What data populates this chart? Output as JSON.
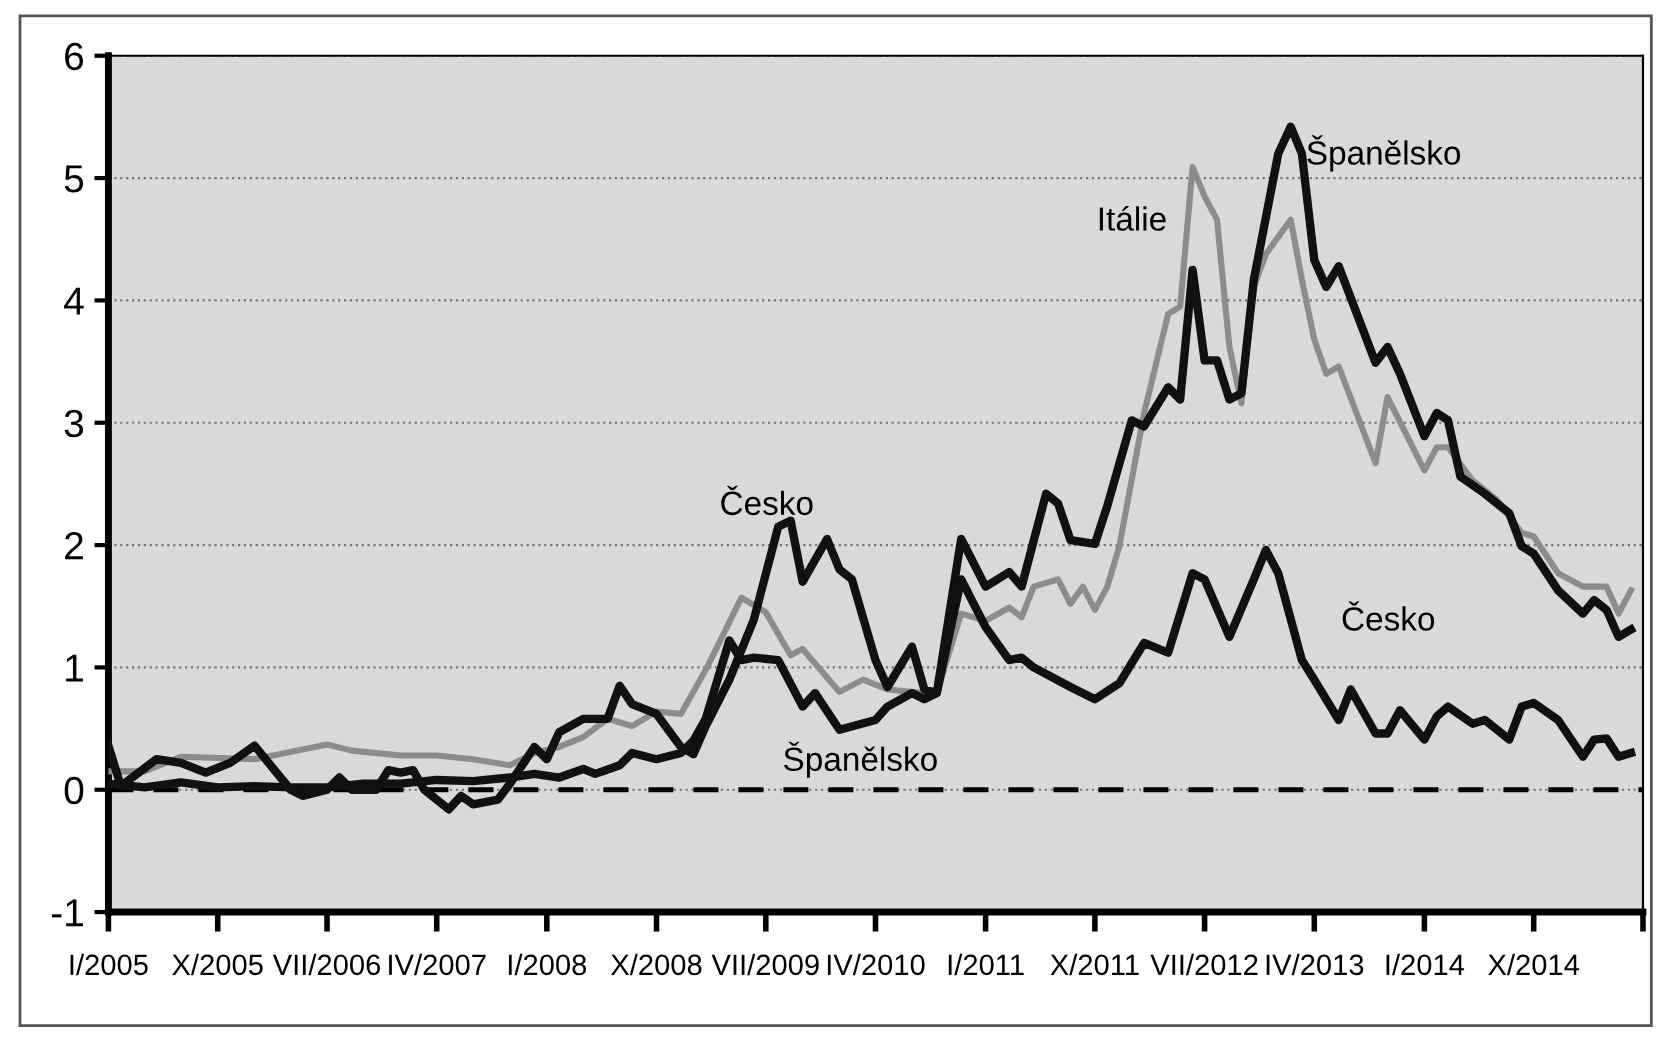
{
  "chart_data": {
    "type": "line",
    "xlim": [
      "2005-01",
      "2015-07"
    ],
    "ylim": [
      -1,
      6
    ],
    "yticks": [
      -1,
      0,
      1,
      2,
      3,
      4,
      5,
      6
    ],
    "xticks": [
      {
        "value": "2005-01",
        "label": "I/2005"
      },
      {
        "value": "2005-10",
        "label": "X/2005"
      },
      {
        "value": "2006-07",
        "label": "VII/2006"
      },
      {
        "value": "2007-04",
        "label": "IV/2007"
      },
      {
        "value": "2008-01",
        "label": "I/2008"
      },
      {
        "value": "2008-10",
        "label": "X/2008"
      },
      {
        "value": "2009-07",
        "label": "VII/2009"
      },
      {
        "value": "2010-04",
        "label": "IV/2010"
      },
      {
        "value": "2011-01",
        "label": "I/2011"
      },
      {
        "value": "2011-10",
        "label": "X/2011"
      },
      {
        "value": "2012-07",
        "label": "VII/2012"
      },
      {
        "value": "2013-04",
        "label": "IV/2013"
      },
      {
        "value": "2014-01",
        "label": "I/2014"
      },
      {
        "value": "2014-10",
        "label": "X/2014"
      },
      {
        "value": "2015-07",
        "label": null
      }
    ],
    "grid": "y",
    "marker": "none",
    "line_style": "solid",
    "ref_lines": [
      {
        "axis": "y",
        "value": 0,
        "label": null,
        "color": "#000000",
        "line_style": "dashed"
      }
    ],
    "annotations": [
      "Česko",
      "Španělsko",
      "Itálie",
      "Španělsko",
      "Česko"
    ],
    "series": [
      {
        "color": "#8c8c8c",
        "x": [
          "2005-01",
          "2005-04",
          "2005-07",
          "2006-01",
          "2006-07",
          "2006-09",
          "2007-01",
          "2007-04",
          "2007-07",
          "2007-10",
          "2007-12",
          "2008-02",
          "2008-04",
          "2008-06",
          "2008-08",
          "2008-10",
          "2008-12",
          "2009-02",
          "2009-04",
          "2009-05",
          "2009-07",
          "2009-09",
          "2009-10",
          "2010-01",
          "2010-03",
          "2010-05",
          "2010-08",
          "2010-09",
          "2010-11",
          "2011-01",
          "2011-03",
          "2011-04",
          "2011-05",
          "2011-07",
          "2011-08",
          "2011-09",
          "2011-10",
          "2011-11",
          "2011-12",
          "2012-02",
          "2012-04",
          "2012-05",
          "2012-06",
          "2012-07",
          "2012-08",
          "2012-09",
          "2012-10",
          "2012-11",
          "2012-12",
          "2013-02",
          "2013-03",
          "2013-04",
          "2013-05",
          "2013-06",
          "2013-09",
          "2013-10",
          "2014-01",
          "2014-02",
          "2014-03",
          "2014-05",
          "2014-07",
          "2014-09",
          "2014-10",
          "2014-12",
          "2015-02",
          "2015-04",
          "2015-05",
          "2015-06"
        ],
        "values": [
          0.15,
          0.15,
          0.27,
          0.25,
          0.37,
          0.32,
          0.28,
          0.28,
          0.25,
          0.2,
          0.3,
          0.35,
          0.43,
          0.58,
          0.52,
          0.64,
          0.62,
          0.98,
          1.37,
          1.57,
          1.45,
          1.1,
          1.15,
          0.8,
          0.9,
          0.82,
          0.79,
          0.79,
          1.44,
          1.38,
          1.49,
          1.41,
          1.66,
          1.72,
          1.52,
          1.66,
          1.47,
          1.66,
          1.99,
          3.08,
          3.89,
          3.95,
          5.09,
          4.85,
          4.66,
          3.62,
          3.16,
          4.11,
          4.38,
          4.66,
          4.17,
          3.68,
          3.4,
          3.46,
          2.67,
          3.21,
          2.61,
          2.8,
          2.8,
          2.53,
          2.37,
          2.1,
          2.07,
          1.77,
          1.66,
          1.66,
          1.44,
          1.63
        ]
      },
      {
        "color": "#111111",
        "x": [
          "2005-01",
          "2005-04",
          "2005-07",
          "2005-10",
          "2006-01",
          "2006-04",
          "2006-07",
          "2006-10",
          "2007-01",
          "2007-04",
          "2007-07",
          "2007-10",
          "2007-12",
          "2008-02",
          "2008-04",
          "2008-05",
          "2008-07",
          "2008-08",
          "2008-10",
          "2008-12",
          "2009-01",
          "2009-02",
          "2009-04",
          "2009-05",
          "2009-06",
          "2009-08",
          "2009-10",
          "2009-11",
          "2010-01",
          "2010-04",
          "2010-05",
          "2010-07",
          "2010-08",
          "2010-09",
          "2010-11",
          "2011-01",
          "2011-03",
          "2011-04",
          "2011-06",
          "2011-07",
          "2011-08",
          "2011-10",
          "2011-11",
          "2012-01",
          "2012-02",
          "2012-04",
          "2012-05",
          "2012-06",
          "2012-07",
          "2012-08",
          "2012-09",
          "2012-10",
          "2012-11",
          "2013-01",
          "2013-02",
          "2013-03",
          "2013-04",
          "2013-05",
          "2013-06",
          "2013-09",
          "2013-10",
          "2013-11",
          "2014-01",
          "2014-02",
          "2014-03",
          "2014-04",
          "2014-06",
          "2014-08",
          "2014-09",
          "2014-10",
          "2014-12",
          "2015-02",
          "2015-03",
          "2015-04",
          "2015-05",
          "2015-06"
        ],
        "values": [
          0.05,
          0.02,
          0.06,
          0.02,
          0.03,
          0.02,
          0.02,
          0.05,
          0.05,
          0.08,
          0.07,
          0.1,
          0.13,
          0.1,
          0.17,
          0.13,
          0.2,
          0.3,
          0.25,
          0.3,
          0.4,
          0.58,
          1.22,
          1.06,
          1.08,
          1.06,
          0.68,
          0.79,
          0.49,
          0.57,
          0.68,
          0.79,
          0.74,
          0.79,
          2.05,
          1.66,
          1.78,
          1.66,
          2.42,
          2.34,
          2.04,
          2.01,
          2.32,
          3.02,
          2.97,
          3.29,
          3.19,
          4.25,
          3.51,
          3.51,
          3.19,
          3.24,
          4.17,
          5.2,
          5.42,
          5.2,
          4.33,
          4.11,
          4.28,
          3.49,
          3.62,
          3.4,
          2.89,
          3.08,
          3.02,
          2.56,
          2.42,
          2.26,
          1.99,
          1.93,
          1.63,
          1.44,
          1.55,
          1.47,
          1.25,
          1.31
        ]
      },
      {
        "color": "#111111",
        "x": [
          "2005-01",
          "2005-02",
          "2005-05",
          "2005-07",
          "2005-09",
          "2005-11",
          "2006-01",
          "2006-04",
          "2006-05",
          "2006-07",
          "2006-08",
          "2006-09",
          "2006-11",
          "2006-12",
          "2007-01",
          "2007-02",
          "2007-03",
          "2007-05",
          "2007-06",
          "2007-07",
          "2007-09",
          "2007-10",
          "2007-12",
          "2008-01",
          "2008-02",
          "2008-04",
          "2008-06",
          "2008-07",
          "2008-08",
          "2008-10",
          "2008-12",
          "2009-01",
          "2009-02",
          "2009-04",
          "2009-06",
          "2009-08",
          "2009-09",
          "2009-10",
          "2009-12",
          "2010-01",
          "2010-02",
          "2010-04",
          "2010-05",
          "2010-07",
          "2010-08",
          "2010-09",
          "2010-11",
          "2011-01",
          "2011-03",
          "2011-04",
          "2011-05",
          "2011-08",
          "2011-10",
          "2011-12",
          "2012-02",
          "2012-04",
          "2012-06",
          "2012-07",
          "2012-09",
          "2012-11",
          "2012-12",
          "2013-01",
          "2013-03",
          "2013-04",
          "2013-06",
          "2013-07",
          "2013-09",
          "2013-10",
          "2013-11",
          "2014-01",
          "2014-02",
          "2014-03",
          "2014-05",
          "2014-06",
          "2014-08",
          "2014-09",
          "2014-10",
          "2014-12",
          "2015-02",
          "2015-03",
          "2015-04",
          "2015-05",
          "2015-06"
        ],
        "values": [
          0.36,
          0.03,
          0.25,
          0.22,
          0.14,
          0.22,
          0.36,
          0.0,
          -0.05,
          0.0,
          0.1,
          0.0,
          0.0,
          0.16,
          0.14,
          0.16,
          0.0,
          -0.16,
          -0.05,
          -0.12,
          -0.08,
          0.05,
          0.35,
          0.25,
          0.47,
          0.58,
          0.58,
          0.85,
          0.7,
          0.62,
          0.35,
          0.29,
          0.52,
          0.9,
          1.39,
          2.15,
          2.2,
          1.7,
          2.05,
          1.8,
          1.72,
          1.06,
          0.84,
          1.17,
          0.82,
          0.79,
          1.72,
          1.33,
          1.06,
          1.08,
          1.0,
          0.84,
          0.74,
          0.87,
          1.2,
          1.12,
          1.77,
          1.72,
          1.25,
          1.72,
          1.96,
          1.77,
          1.06,
          0.9,
          0.57,
          0.82,
          0.46,
          0.46,
          0.65,
          0.41,
          0.6,
          0.68,
          0.54,
          0.57,
          0.41,
          0.68,
          0.71,
          0.57,
          0.27,
          0.41,
          0.42,
          0.27,
          0.3
        ]
      }
    ]
  }
}
